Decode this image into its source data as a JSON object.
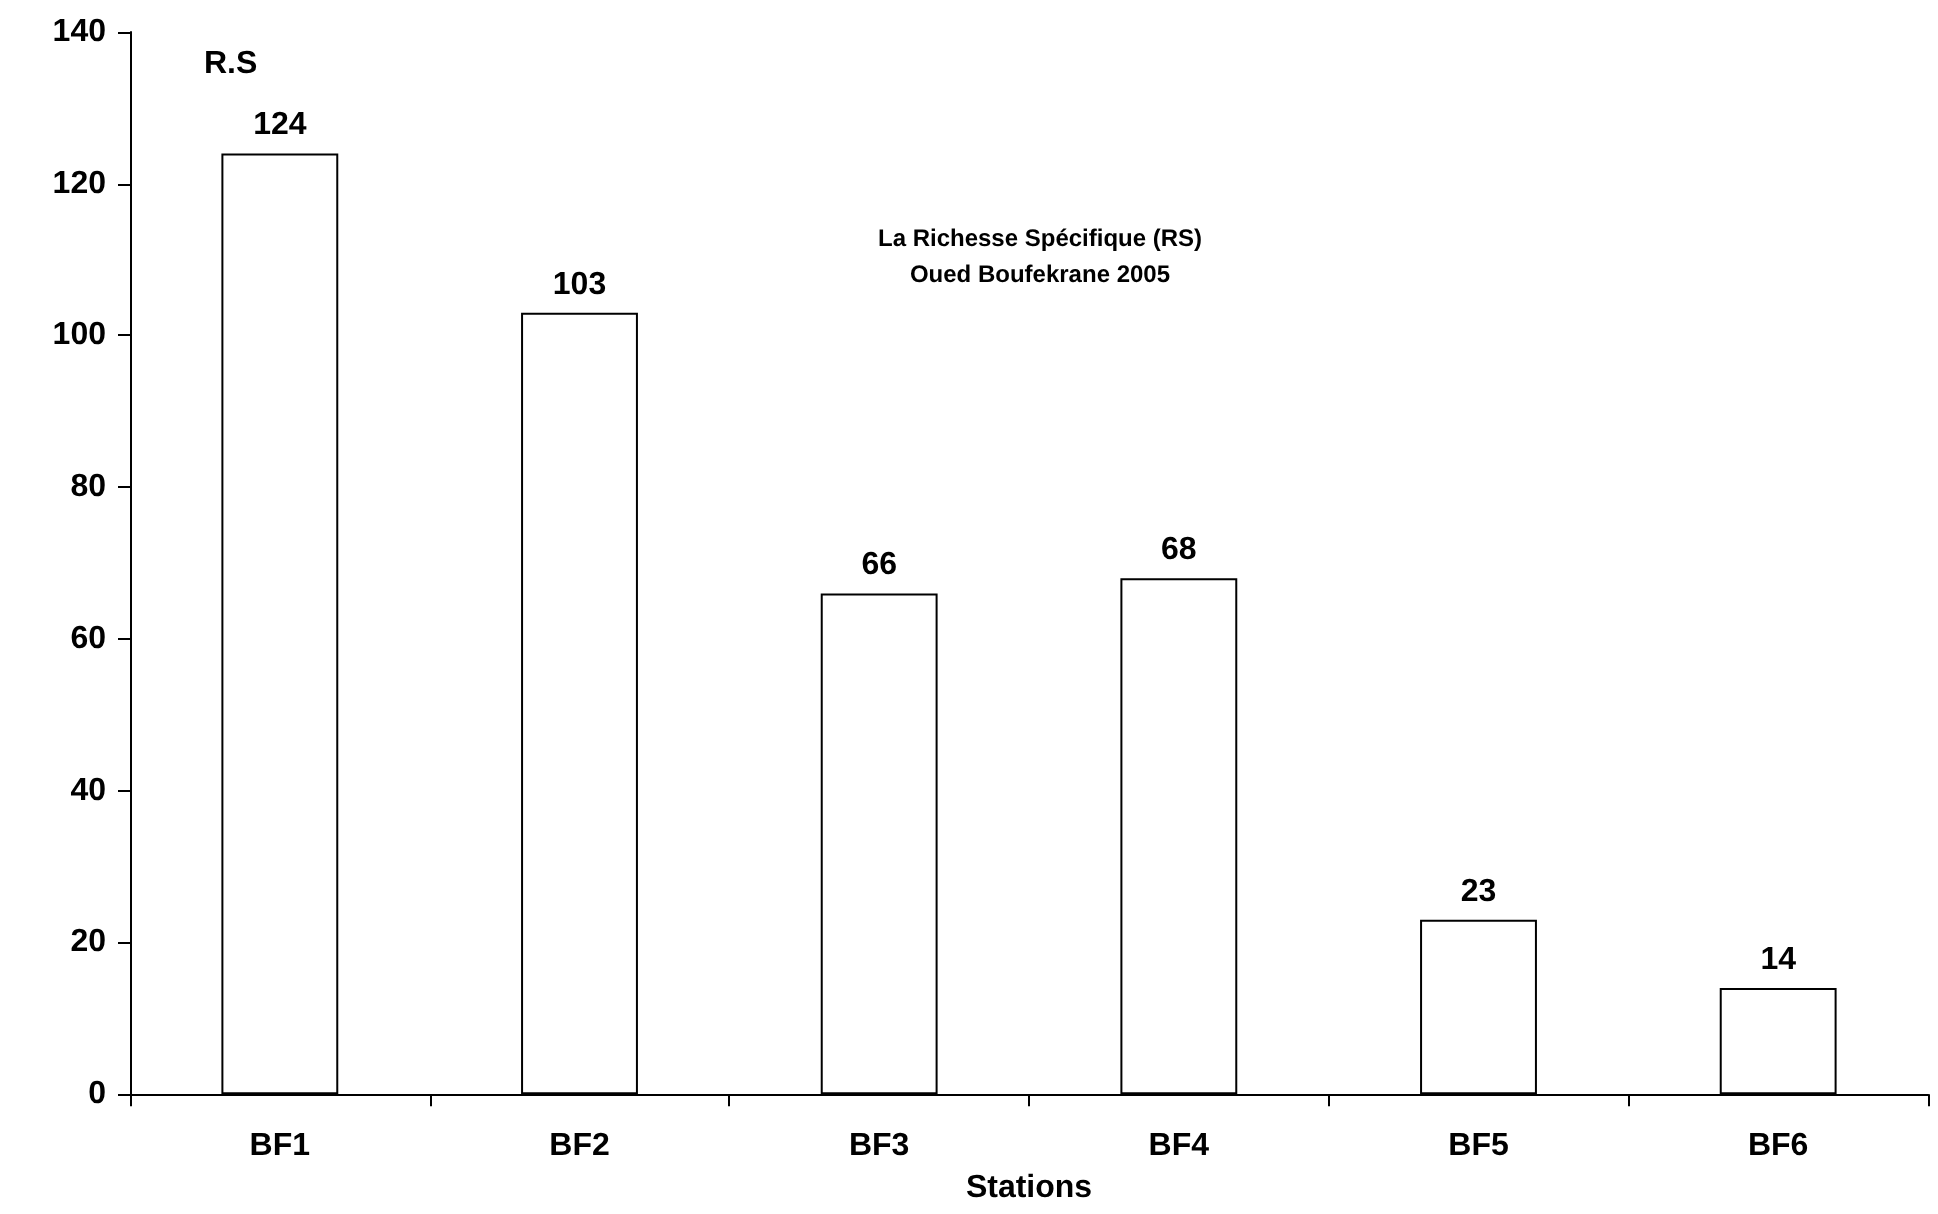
{
  "chart_data": {
    "type": "bar",
    "title": "La Richesse Spécifique (RS)",
    "subtitle": "Oued Boufekrane 2005",
    "xlabel": "Stations",
    "ylabel": "R.S",
    "categories": [
      "BF1",
      "BF2",
      "BF3",
      "BF4",
      "BF5",
      "BF6"
    ],
    "values": [
      124,
      103,
      66,
      68,
      23,
      14
    ],
    "color": "#ffffff",
    "ylim": [
      0,
      140
    ],
    "yticks": [
      0,
      20,
      40,
      60,
      80,
      100,
      120,
      140
    ],
    "data_labels": true
  }
}
